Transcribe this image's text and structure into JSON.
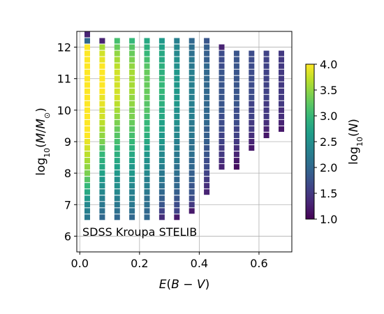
{
  "chart_data": {
    "type": "heatmap",
    "xlabel": "E(B − V)",
    "ylabel": "log10(M/M⊙)",
    "annotation": "SDSS Kroupa STELIB",
    "xlim": [
      -0.01,
      0.71
    ],
    "ylim": [
      5.5,
      12.5
    ],
    "x_ticks": [
      0.0,
      0.2,
      0.4,
      0.6
    ],
    "x_tick_labels": [
      "0.0",
      "0.2",
      "0.4",
      "0.6"
    ],
    "y_ticks": [
      6,
      7,
      8,
      9,
      10,
      11,
      12
    ],
    "y_tick_labels": [
      "6",
      "7",
      "8",
      "9",
      "10",
      "11",
      "12"
    ],
    "grid": true,
    "colormap": "viridis",
    "colorbar": {
      "label": "log10(N)",
      "range": [
        1.0,
        4.0
      ],
      "ticks": [
        1.0,
        1.5,
        2.0,
        2.5,
        3.0,
        3.5,
        4.0
      ],
      "tick_labels": [
        "1.0",
        "1.5",
        "2.0",
        "2.5",
        "3.0",
        "3.5",
        "4.0"
      ]
    },
    "cell_size": {
      "dx": 0.05,
      "dy": 0.2
    },
    "columns": [
      {
        "x": 0.025,
        "y_start": 6.6,
        "values": [
          2.2,
          2.3,
          2.4,
          2.6,
          2.8,
          3.0,
          3.2,
          3.4,
          3.5,
          3.6,
          3.7,
          3.8,
          3.9,
          4.0,
          4.0,
          4.0,
          4.0,
          4.0,
          4.0,
          4.0,
          4.0,
          4.0,
          4.0,
          4.0,
          4.0,
          4.0,
          4.0,
          4.0,
          4.0
        ],
        "extra": [
          {
            "y": 12.2,
            "value": 2.0
          },
          {
            "y": 12.4,
            "value": 1.3
          }
        ]
      },
      {
        "x": 0.075,
        "y_start": 6.6,
        "values": [
          2.0,
          2.1,
          2.2,
          2.3,
          2.4,
          2.5,
          2.6,
          2.7,
          2.8,
          2.9,
          3.0,
          3.2,
          3.4,
          3.5,
          3.6,
          3.7,
          3.8,
          3.8,
          3.9,
          3.9,
          4.0,
          4.0,
          4.0,
          4.0,
          4.0,
          3.9,
          3.8,
          3.6,
          3.4
        ],
        "extra": [
          {
            "y": 12.2,
            "value": 1.3
          }
        ]
      },
      {
        "x": 0.125,
        "y_start": 6.6,
        "values": [
          2.0,
          2.1,
          2.2,
          2.3,
          2.4,
          2.5,
          2.5,
          2.6,
          2.7,
          2.8,
          2.9,
          3.0,
          3.1,
          3.2,
          3.3,
          3.4,
          3.5,
          3.6,
          3.7,
          3.8,
          3.8,
          3.8,
          3.8,
          3.8,
          3.7,
          3.6,
          3.5,
          3.3,
          3.1
        ]
      },
      {
        "x": 0.175,
        "y_start": 6.6,
        "values": [
          2.0,
          2.1,
          2.2,
          2.3,
          2.3,
          2.4,
          2.5,
          2.6,
          2.6,
          2.7,
          2.8,
          2.9,
          3.0,
          3.1,
          3.2,
          3.3,
          3.4,
          3.4,
          3.5,
          3.5,
          3.6,
          3.6,
          3.6,
          3.6,
          3.5,
          3.4,
          3.3,
          3.2,
          3.0
        ]
      },
      {
        "x": 0.225,
        "y_start": 6.6,
        "values": [
          2.0,
          2.0,
          2.1,
          2.1,
          2.2,
          2.3,
          2.3,
          2.4,
          2.5,
          2.5,
          2.6,
          2.7,
          2.8,
          2.9,
          3.0,
          3.0,
          3.1,
          3.2,
          3.2,
          3.3,
          3.3,
          3.3,
          3.3,
          3.3,
          3.2,
          3.1,
          3.0,
          2.9,
          2.8
        ]
      },
      {
        "x": 0.275,
        "y_start": 6.6,
        "values": [
          1.4,
          1.6,
          1.8,
          1.9,
          2.0,
          2.1,
          2.2,
          2.2,
          2.3,
          2.4,
          2.4,
          2.5,
          2.6,
          2.6,
          2.7,
          2.7,
          2.8,
          2.8,
          2.9,
          2.9,
          3.0,
          3.0,
          3.0,
          2.9,
          2.9,
          2.8,
          2.8,
          2.7,
          2.6
        ]
      },
      {
        "x": 0.325,
        "y_start": 6.6,
        "values": [
          1.2,
          1.6,
          1.7,
          1.8,
          1.9,
          2.0,
          2.0,
          2.1,
          2.1,
          2.2,
          2.2,
          2.3,
          2.3,
          2.4,
          2.4,
          2.5,
          2.5,
          2.5,
          2.6,
          2.6,
          2.6,
          2.6,
          2.6,
          2.6,
          2.5,
          2.5,
          2.4,
          2.4,
          2.3
        ]
      },
      {
        "x": 0.375,
        "y_start": 6.8,
        "values": [
          1.2,
          1.5,
          1.7,
          1.8,
          1.8,
          1.9,
          1.9,
          2.0,
          2.0,
          2.1,
          2.1,
          2.1,
          2.2,
          2.2,
          2.2,
          2.3,
          2.3,
          2.3,
          2.3,
          2.3,
          2.3,
          2.3,
          2.3,
          2.2,
          2.2,
          2.1,
          2.1,
          2.0
        ]
      },
      {
        "x": 0.425,
        "y_start": 7.4,
        "values": [
          1.3,
          1.4,
          1.5,
          1.6,
          1.7,
          1.7,
          1.8,
          1.8,
          1.9,
          1.9,
          1.9,
          2.0,
          2.0,
          2.0,
          2.0,
          2.0,
          2.0,
          2.0,
          2.0,
          2.0,
          2.0,
          1.9,
          1.9,
          1.9,
          1.8
        ]
      },
      {
        "x": 0.475,
        "y_start": 8.2,
        "values": [
          1.3,
          1.4,
          1.5,
          1.5,
          1.6,
          1.6,
          1.7,
          1.7,
          1.7,
          1.8,
          1.8,
          1.8,
          1.8,
          1.8,
          1.8,
          1.8,
          1.7,
          1.7,
          1.7,
          1.3
        ]
      },
      {
        "x": 0.525,
        "y_start": 8.2,
        "values": [
          1.1,
          1.2,
          1.3,
          1.4,
          1.5,
          1.6,
          1.6,
          1.7,
          1.7,
          1.7,
          1.8,
          1.8,
          1.8,
          1.8,
          1.8,
          1.8,
          1.8,
          1.8,
          1.8
        ]
      },
      {
        "x": 0.575,
        "y_start": 8.8,
        "values": [
          1.2,
          1.3,
          1.4,
          1.5,
          1.5,
          1.6,
          1.6,
          1.6,
          1.7,
          1.7,
          1.7,
          1.7,
          1.7,
          1.7,
          1.7,
          1.7
        ]
      },
      {
        "x": 0.625,
        "y_start": 9.2,
        "values": [
          1.2,
          1.3,
          1.4,
          1.5,
          1.5,
          1.5,
          1.6,
          1.6,
          1.6,
          1.6,
          1.6,
          1.6,
          1.6,
          1.6
        ]
      },
      {
        "x": 0.675,
        "y_start": 9.4,
        "values": [
          1.2,
          1.3,
          1.4,
          1.4,
          1.5,
          1.5,
          1.5,
          1.5,
          1.5,
          1.5,
          1.5,
          1.5,
          1.5
        ]
      }
    ]
  }
}
